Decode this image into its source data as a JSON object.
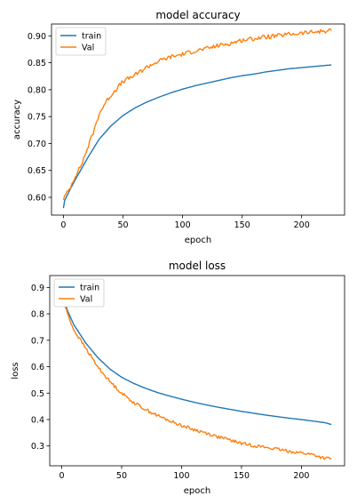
{
  "chart_data": [
    {
      "type": "line",
      "title": "model accuracy",
      "xlabel": "epoch",
      "ylabel": "accuracy",
      "xlim": [
        -10,
        236
      ],
      "ylim": [
        0.567,
        0.922
      ],
      "xticks": [
        0,
        50,
        100,
        150,
        200
      ],
      "yticks": [
        0.6,
        0.65,
        0.7,
        0.75,
        0.8,
        0.85,
        0.9
      ],
      "ytick_labels": [
        "0.60",
        "0.65",
        "0.70",
        "0.75",
        "0.80",
        "0.85",
        "0.90"
      ],
      "legend_loc": "upper left",
      "grid": false,
      "series": [
        {
          "name": "train",
          "color": "#1f77b4",
          "points": [
            [
              0,
              0.58
            ],
            [
              1,
              0.594
            ],
            [
              5,
              0.612
            ],
            [
              10,
              0.633
            ],
            [
              20,
              0.672
            ],
            [
              30,
              0.708
            ],
            [
              40,
              0.733
            ],
            [
              50,
              0.752
            ],
            [
              60,
              0.766
            ],
            [
              70,
              0.777
            ],
            [
              80,
              0.786
            ],
            [
              90,
              0.794
            ],
            [
              100,
              0.801
            ],
            [
              110,
              0.807
            ],
            [
              120,
              0.812
            ],
            [
              130,
              0.817
            ],
            [
              140,
              0.822
            ],
            [
              150,
              0.826
            ],
            [
              160,
              0.829
            ],
            [
              170,
              0.833
            ],
            [
              180,
              0.836
            ],
            [
              190,
              0.839
            ],
            [
              200,
              0.841
            ],
            [
              210,
              0.843
            ],
            [
              220,
              0.845
            ],
            [
              225,
              0.846
            ]
          ],
          "noise": 0
        },
        {
          "name": "Val",
          "color": "#ff7f0e",
          "points": [
            [
              0,
              0.598
            ],
            [
              5,
              0.615
            ],
            [
              10,
              0.64
            ],
            [
              15,
              0.66
            ],
            [
              20,
              0.69
            ],
            [
              25,
              0.72
            ],
            [
              30,
              0.755
            ],
            [
              35,
              0.775
            ],
            [
              40,
              0.79
            ],
            [
              45,
              0.803
            ],
            [
              50,
              0.815
            ],
            [
              60,
              0.827
            ],
            [
              70,
              0.842
            ],
            [
              80,
              0.853
            ],
            [
              90,
              0.861
            ],
            [
              100,
              0.866
            ],
            [
              110,
              0.872
            ],
            [
              120,
              0.876
            ],
            [
              130,
              0.882
            ],
            [
              140,
              0.886
            ],
            [
              150,
              0.892
            ],
            [
              160,
              0.895
            ],
            [
              170,
              0.898
            ],
            [
              180,
              0.9
            ],
            [
              190,
              0.903
            ],
            [
              200,
              0.905
            ],
            [
              210,
              0.907
            ],
            [
              220,
              0.909
            ],
            [
              225,
              0.91
            ]
          ],
          "noise": 0.004
        }
      ]
    },
    {
      "type": "line",
      "title": "model loss",
      "xlabel": "epoch",
      "ylabel": "loss",
      "xlim": [
        -10,
        236
      ],
      "ylim": [
        0.225,
        0.945
      ],
      "xticks": [
        0,
        50,
        100,
        150,
        200
      ],
      "yticks": [
        0.3,
        0.4,
        0.5,
        0.6,
        0.7,
        0.8,
        0.9
      ],
      "ytick_labels": [
        "0.3",
        "0.4",
        "0.5",
        "0.6",
        "0.7",
        "0.8",
        "0.9"
      ],
      "legend_loc": "upper left",
      "grid": false,
      "series": [
        {
          "name": "train",
          "color": "#1f77b4",
          "points": [
            [
              0,
              0.88
            ],
            [
              5,
              0.81
            ],
            [
              10,
              0.76
            ],
            [
              20,
              0.69
            ],
            [
              30,
              0.635
            ],
            [
              40,
              0.592
            ],
            [
              50,
              0.56
            ],
            [
              60,
              0.537
            ],
            [
              70,
              0.518
            ],
            [
              80,
              0.502
            ],
            [
              90,
              0.489
            ],
            [
              100,
              0.477
            ],
            [
              110,
              0.466
            ],
            [
              120,
              0.456
            ],
            [
              130,
              0.447
            ],
            [
              140,
              0.439
            ],
            [
              150,
              0.431
            ],
            [
              160,
              0.424
            ],
            [
              170,
              0.417
            ],
            [
              180,
              0.411
            ],
            [
              190,
              0.405
            ],
            [
              200,
              0.4
            ],
            [
              210,
              0.394
            ],
            [
              220,
              0.388
            ],
            [
              225,
              0.381
            ]
          ],
          "noise": 0
        },
        {
          "name": "Val",
          "color": "#ff7f0e",
          "points": [
            [
              0,
              0.86
            ],
            [
              5,
              0.8
            ],
            [
              10,
              0.74
            ],
            [
              20,
              0.67
            ],
            [
              30,
              0.6
            ],
            [
              40,
              0.545
            ],
            [
              50,
              0.5
            ],
            [
              60,
              0.465
            ],
            [
              70,
              0.438
            ],
            [
              80,
              0.415
            ],
            [
              90,
              0.395
            ],
            [
              100,
              0.378
            ],
            [
              110,
              0.362
            ],
            [
              120,
              0.35
            ],
            [
              130,
              0.335
            ],
            [
              140,
              0.323
            ],
            [
              150,
              0.31
            ],
            [
              160,
              0.302
            ],
            [
              170,
              0.295
            ],
            [
              180,
              0.287
            ],
            [
              190,
              0.28
            ],
            [
              200,
              0.274
            ],
            [
              210,
              0.267
            ],
            [
              215,
              0.259
            ],
            [
              220,
              0.253
            ],
            [
              225,
              0.252
            ]
          ],
          "noise": 0.006
        }
      ]
    }
  ]
}
